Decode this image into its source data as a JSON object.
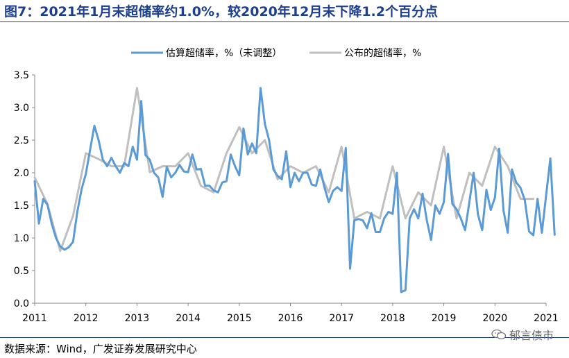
{
  "page": {
    "title": "图7：2021年1月末超储率约1.0%，较2020年12月末下降1.2个百分点",
    "source": "数据来源：Wind，广发证券发展研究中心",
    "watermark": "郁言债市"
  },
  "chart_data": {
    "type": "line",
    "title": "",
    "xlabel": "",
    "ylabel": "",
    "ylim": [
      0,
      3.5
    ],
    "yticks": [
      "0.0",
      "0.5",
      "1.0",
      "1.5",
      "2.0",
      "2.5",
      "3.0",
      "3.5"
    ],
    "xlim": [
      2011.0,
      2021.0
    ],
    "xticks": [
      "2011",
      "2012",
      "2013",
      "2014",
      "2015",
      "2016",
      "2017",
      "2018",
      "2019",
      "2020",
      "2021"
    ],
    "legend": "top",
    "grid": false,
    "series": [
      {
        "name": "估算超储率，%（未调整）",
        "color": "#5b9bd5",
        "points": [
          [
            2011.0,
            1.87
          ],
          [
            2011.083,
            1.22
          ],
          [
            2011.167,
            1.6
          ],
          [
            2011.25,
            1.51
          ],
          [
            2011.333,
            1.22
          ],
          [
            2011.417,
            1.0
          ],
          [
            2011.5,
            0.87
          ],
          [
            2011.583,
            0.82
          ],
          [
            2011.667,
            0.86
          ],
          [
            2011.75,
            0.94
          ],
          [
            2011.833,
            1.4
          ],
          [
            2011.917,
            1.75
          ],
          [
            2012.0,
            1.98
          ],
          [
            2012.083,
            2.35
          ],
          [
            2012.167,
            2.72
          ],
          [
            2012.25,
            2.5
          ],
          [
            2012.333,
            2.2
          ],
          [
            2012.417,
            2.1
          ],
          [
            2012.5,
            2.23
          ],
          [
            2012.583,
            2.1
          ],
          [
            2012.667,
            2.0
          ],
          [
            2012.75,
            2.15
          ],
          [
            2012.833,
            2.1
          ],
          [
            2012.917,
            2.4
          ],
          [
            2013.0,
            2.2
          ],
          [
            2013.083,
            3.1
          ],
          [
            2013.167,
            2.27
          ],
          [
            2013.25,
            2.2
          ],
          [
            2013.333,
            2.0
          ],
          [
            2013.417,
            1.93
          ],
          [
            2013.5,
            1.63
          ],
          [
            2013.583,
            2.09
          ],
          [
            2013.667,
            1.93
          ],
          [
            2013.75,
            2.0
          ],
          [
            2013.833,
            2.12
          ],
          [
            2013.917,
            2.02
          ],
          [
            2014.0,
            2.01
          ],
          [
            2014.083,
            2.28
          ],
          [
            2014.167,
            2.05
          ],
          [
            2014.25,
            2.06
          ],
          [
            2014.333,
            1.8
          ],
          [
            2014.417,
            1.8
          ],
          [
            2014.5,
            1.73
          ],
          [
            2014.583,
            1.7
          ],
          [
            2014.667,
            1.85
          ],
          [
            2014.75,
            1.87
          ],
          [
            2014.833,
            2.28
          ],
          [
            2014.917,
            2.1
          ],
          [
            2015.0,
            1.96
          ],
          [
            2015.083,
            2.68
          ],
          [
            2015.167,
            2.28
          ],
          [
            2015.25,
            2.45
          ],
          [
            2015.333,
            2.3
          ],
          [
            2015.417,
            3.3
          ],
          [
            2015.5,
            2.75
          ],
          [
            2015.583,
            2.5
          ],
          [
            2015.667,
            2.05
          ],
          [
            2015.75,
            1.95
          ],
          [
            2015.833,
            1.9
          ],
          [
            2015.917,
            2.33
          ],
          [
            2016.0,
            1.78
          ],
          [
            2016.083,
            2.0
          ],
          [
            2016.167,
            1.87
          ],
          [
            2016.25,
            2.0
          ],
          [
            2016.333,
            2.0
          ],
          [
            2016.417,
            1.82
          ],
          [
            2016.5,
            1.8
          ],
          [
            2016.583,
            2.05
          ],
          [
            2016.667,
            1.77
          ],
          [
            2016.75,
            1.55
          ],
          [
            2016.833,
            1.72
          ],
          [
            2016.917,
            1.78
          ],
          [
            2017.0,
            1.72
          ],
          [
            2017.083,
            2.38
          ],
          [
            2017.167,
            0.53
          ],
          [
            2017.25,
            1.27
          ],
          [
            2017.333,
            1.29
          ],
          [
            2017.417,
            1.27
          ],
          [
            2017.5,
            1.15
          ],
          [
            2017.583,
            1.38
          ],
          [
            2017.667,
            1.09
          ],
          [
            2017.75,
            1.09
          ],
          [
            2017.833,
            1.3
          ],
          [
            2017.917,
            1.4
          ],
          [
            2018.0,
            1.37
          ],
          [
            2018.083,
            2.0
          ],
          [
            2018.167,
            0.17
          ],
          [
            2018.25,
            0.2
          ],
          [
            2018.333,
            1.3
          ],
          [
            2018.417,
            1.44
          ],
          [
            2018.5,
            1.3
          ],
          [
            2018.583,
            1.68
          ],
          [
            2018.667,
            1.27
          ],
          [
            2018.75,
            0.97
          ],
          [
            2018.833,
            1.5
          ],
          [
            2018.917,
            1.37
          ],
          [
            2019.0,
            1.55
          ],
          [
            2019.083,
            2.29
          ],
          [
            2019.167,
            1.52
          ],
          [
            2019.25,
            1.44
          ],
          [
            2019.333,
            1.3
          ],
          [
            2019.417,
            1.12
          ],
          [
            2019.5,
            1.55
          ],
          [
            2019.583,
            2.0
          ],
          [
            2019.667,
            1.36
          ],
          [
            2019.75,
            1.12
          ],
          [
            2019.833,
            1.74
          ],
          [
            2019.917,
            1.43
          ],
          [
            2020.0,
            1.62
          ],
          [
            2020.083,
            2.37
          ],
          [
            2020.167,
            1.42
          ],
          [
            2020.25,
            1.08
          ],
          [
            2020.333,
            2.05
          ],
          [
            2020.417,
            1.85
          ],
          [
            2020.5,
            1.77
          ],
          [
            2020.583,
            1.58
          ],
          [
            2020.667,
            1.1
          ],
          [
            2020.75,
            1.04
          ],
          [
            2020.833,
            1.6
          ],
          [
            2020.917,
            1.08
          ],
          [
            2021.0,
            1.65
          ],
          [
            2021.083,
            2.22
          ],
          [
            2021.167,
            1.05
          ]
        ]
      },
      {
        "name": "公布的超储率，%",
        "color": "#bfbfbf",
        "points": [
          [
            2011.0,
            1.93
          ],
          [
            2011.25,
            1.52
          ],
          [
            2011.5,
            0.8
          ],
          [
            2011.75,
            1.34
          ],
          [
            2012.0,
            2.3
          ],
          [
            2012.25,
            2.21
          ],
          [
            2012.5,
            2.1
          ],
          [
            2012.75,
            2.1
          ],
          [
            2013.0,
            3.3
          ],
          [
            2013.25,
            2.01
          ],
          [
            2013.5,
            2.1
          ],
          [
            2013.75,
            2.1
          ],
          [
            2014.0,
            2.3
          ],
          [
            2014.25,
            1.8
          ],
          [
            2014.5,
            1.7
          ],
          [
            2014.75,
            2.3
          ],
          [
            2015.0,
            2.7
          ],
          [
            2015.25,
            2.3
          ],
          [
            2015.5,
            2.5
          ],
          [
            2015.75,
            1.9
          ],
          [
            2016.0,
            2.1
          ],
          [
            2016.25,
            2.0
          ],
          [
            2016.5,
            2.1
          ],
          [
            2016.75,
            1.7
          ],
          [
            2017.0,
            2.4
          ],
          [
            2017.25,
            1.3
          ],
          [
            2017.5,
            1.4
          ],
          [
            2017.75,
            1.3
          ],
          [
            2018.0,
            2.1
          ],
          [
            2018.25,
            1.3
          ],
          [
            2018.5,
            1.7
          ],
          [
            2018.75,
            1.5
          ],
          [
            2019.0,
            2.4
          ],
          [
            2019.25,
            1.3
          ],
          [
            2019.5,
            2.0
          ],
          [
            2019.75,
            1.8
          ],
          [
            2020.0,
            2.4
          ],
          [
            2020.25,
            2.1
          ],
          [
            2020.5,
            1.6
          ],
          [
            2020.75,
            1.6
          ]
        ]
      }
    ]
  }
}
